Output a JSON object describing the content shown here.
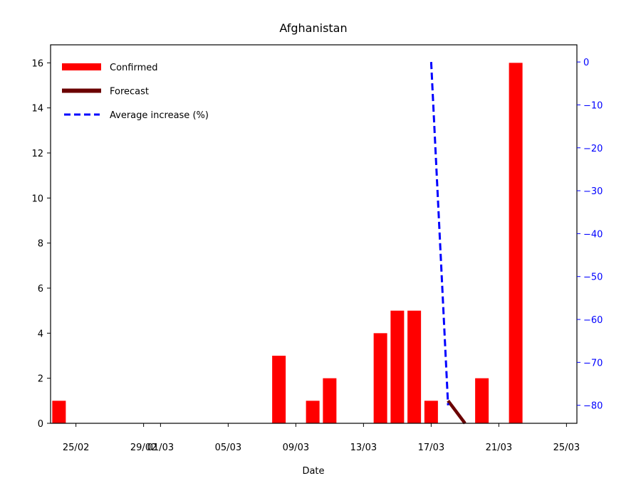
{
  "chart_data": {
    "type": "bar",
    "title": "Afghanistan",
    "xlabel": "Date",
    "ylabel": "",
    "ylim": [
      0,
      16.8
    ],
    "ylim_right": [
      -84.2,
      4.0
    ],
    "x_ticks": [
      "25/02",
      "29/02",
      "01/03",
      "05/03",
      "09/03",
      "13/03",
      "17/03",
      "21/03",
      "25/03"
    ],
    "y_ticks": [
      "0",
      "2",
      "4",
      "6",
      "8",
      "10",
      "12",
      "14",
      "16"
    ],
    "y_ticks_right": [
      "0",
      "−10",
      "−20",
      "−30",
      "−40",
      "−50",
      "−60",
      "−70",
      "−80"
    ],
    "colors": {
      "confirmed": "#ff0000",
      "forecast": "#6b0000",
      "average": "#0000ff",
      "right_axis": "#0000ff"
    },
    "legend_position": "top-left",
    "legend": [
      {
        "label": "Confirmed",
        "style": "bar"
      },
      {
        "label": "Forecast",
        "style": "thick-line"
      },
      {
        "label": "Average increase (%)",
        "style": "dashed-line"
      }
    ],
    "series": [
      {
        "name": "Confirmed",
        "type": "bar",
        "axis": "left",
        "x": [
          "2020-02-24",
          "2020-03-08",
          "2020-03-10",
          "2020-03-11",
          "2020-03-14",
          "2020-03-15",
          "2020-03-16",
          "2020-03-17",
          "2020-03-20",
          "2020-03-22"
        ],
        "values": [
          1,
          3,
          1,
          2,
          4,
          5,
          5,
          1,
          2,
          16
        ]
      },
      {
        "name": "Forecast",
        "type": "line",
        "axis": "left",
        "x": [
          "2020-03-18",
          "2020-03-19"
        ],
        "values": [
          1,
          0
        ]
      },
      {
        "name": "Average increase (%)",
        "type": "line",
        "axis": "right",
        "dashed": true,
        "x": [
          "2020-03-17",
          "2020-03-18"
        ],
        "values": [
          0,
          -80
        ]
      }
    ]
  }
}
